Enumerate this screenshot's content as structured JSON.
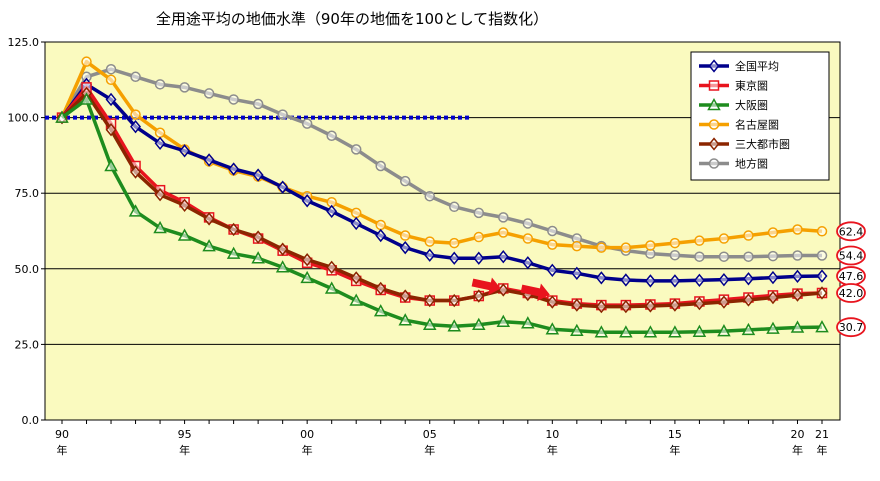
{
  "chart_data": {
    "type": "line",
    "title": "全用途平均の地価水準（90年の地価を100として指数化）",
    "ylim": [
      0,
      125
    ],
    "yticks": [
      "0.0",
      "25.0",
      "50.0",
      "75.0",
      "100.0",
      "125.0"
    ],
    "ytick_values": [
      0,
      25,
      50,
      75,
      100,
      125
    ],
    "x": [
      1990,
      1991,
      1992,
      1993,
      1994,
      1995,
      1996,
      1997,
      1998,
      1999,
      2000,
      2001,
      2002,
      2003,
      2004,
      2005,
      2006,
      2007,
      2008,
      2009,
      2010,
      2011,
      2012,
      2013,
      2014,
      2015,
      2016,
      2017,
      2018,
      2019,
      2020,
      2021
    ],
    "xticks": [
      {
        "year": 1990,
        "label": "90",
        "unit": "年"
      },
      {
        "year": 1995,
        "label": "95",
        "unit": "年"
      },
      {
        "year": 2000,
        "label": "00",
        "unit": "年"
      },
      {
        "year": 2005,
        "label": "05",
        "unit": "年"
      },
      {
        "year": 2010,
        "label": "10",
        "unit": "年"
      },
      {
        "year": 2015,
        "label": "15",
        "unit": "年"
      },
      {
        "year": 2020,
        "label": "20",
        "unit": "年"
      },
      {
        "year": 2021,
        "label": "21",
        "unit": "年"
      }
    ],
    "reference_line": {
      "value": 100,
      "color": "#0000cc",
      "style": "dotted"
    },
    "grid": {
      "horizontal": true,
      "vertical": false
    },
    "legend_position": "top-right",
    "series": [
      {
        "name": "全国平均",
        "color": "#00008b",
        "marker": "diamond",
        "values": [
          100,
          111,
          106,
          97,
          91.5,
          89,
          86,
          83,
          81,
          77,
          72.5,
          69,
          65,
          61,
          57,
          54.5,
          53.5,
          53.5,
          54,
          52,
          49.5,
          48.5,
          47,
          46.3,
          46,
          46,
          46.2,
          46.4,
          46.7,
          47.1,
          47.5,
          47.6
        ]
      },
      {
        "name": "東京圏",
        "color": "#e8141e",
        "marker": "square",
        "values": [
          100,
          110,
          98,
          84,
          76,
          72,
          67,
          63,
          60,
          56,
          52,
          49.5,
          46,
          43,
          40.5,
          39.5,
          39.5,
          41,
          43.5,
          42,
          39.5,
          38.5,
          38,
          38,
          38.2,
          38.5,
          39.2,
          39.8,
          40.5,
          41.2,
          41.8,
          42.0
        ]
      },
      {
        "name": "大阪圏",
        "color": "#1e8c1e",
        "marker": "triangle",
        "values": [
          100,
          106,
          84,
          69,
          63.5,
          61,
          57.5,
          55,
          53.5,
          50.5,
          47,
          43.5,
          39.5,
          36,
          33,
          31.5,
          31,
          31.5,
          32.5,
          32,
          30,
          29.5,
          29,
          29,
          29,
          29,
          29.2,
          29.4,
          29.8,
          30.2,
          30.6,
          30.7
        ]
      },
      {
        "name": "名古屋圏",
        "color": "#f5a000",
        "marker": "circle",
        "values": [
          100,
          118.5,
          112.5,
          101,
          95,
          89.5,
          85.5,
          82.5,
          80.5,
          77,
          74,
          72,
          68.5,
          64.5,
          61,
          59,
          58.5,
          60.5,
          62,
          60,
          58,
          57.5,
          57,
          57,
          57.7,
          58.5,
          59.3,
          60,
          61,
          62,
          63,
          62.4
        ]
      },
      {
        "name": "三大都市圏",
        "color": "#8b2500",
        "marker": "diamond",
        "values": [
          100,
          108,
          96,
          82,
          74.5,
          71,
          66.5,
          63,
          60.5,
          56.5,
          53,
          50.5,
          47,
          43.5,
          41,
          39.5,
          39.5,
          41,
          43,
          41.5,
          39,
          38,
          37.5,
          37.5,
          37.7,
          38,
          38.5,
          39,
          39.7,
          40.5,
          41.3,
          42.0
        ]
      },
      {
        "name": "地方圏",
        "color": "#8c8c8c",
        "marker": "circle",
        "values": [
          100,
          113.5,
          116,
          113.5,
          111,
          110,
          108,
          106,
          104.5,
          101,
          98,
          94,
          89.5,
          84,
          79,
          74,
          70.5,
          68.5,
          67,
          65,
          62.5,
          60,
          57.5,
          56,
          55,
          54.5,
          54,
          54,
          54,
          54.2,
          54.4,
          54.4
        ]
      }
    ],
    "end_labels": [
      {
        "series": "名古屋圏",
        "text": "62.4"
      },
      {
        "series": "地方圏",
        "text": "54.4"
      },
      {
        "series": "全国平均",
        "text": "47.6"
      },
      {
        "series": "三大都市圏",
        "text": "42.0"
      },
      {
        "series": "大阪圏",
        "text": "30.7"
      }
    ],
    "annotations": [
      {
        "type": "arrow",
        "year": 2007.3,
        "value": 44.5,
        "color": "#e8141e"
      },
      {
        "type": "arrow",
        "year": 2009.3,
        "value": 42.5,
        "color": "#e8141e"
      }
    ],
    "colors": {
      "plot_background": "#fafabf",
      "end_label_circle": "#e8141e",
      "gridline": "#000000"
    }
  }
}
